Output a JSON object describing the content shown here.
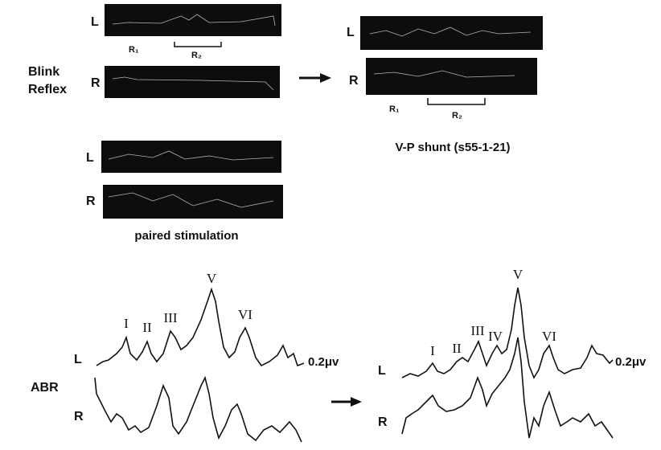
{
  "blink_reflex": {
    "label": [
      "Blink",
      "Reflex"
    ],
    "before": {
      "left": "L",
      "right": "R",
      "r1": "R₁",
      "r2": "R₂"
    },
    "after": {
      "left": "L",
      "right": "R",
      "r1": "R₁",
      "r2": "R₂",
      "caption": "V-P shunt (s55-1-21)"
    },
    "paired": {
      "left": "L",
      "right": "R",
      "caption": "paired stimulation"
    }
  },
  "abr": {
    "label": "ABR",
    "before": {
      "left": "L",
      "right": "R",
      "peaks": [
        "I",
        "II",
        "III",
        "V",
        "VI"
      ],
      "scale": "0.2μv"
    },
    "after": {
      "left": "L",
      "right": "R",
      "peaks": [
        "I",
        "II",
        "III",
        "IV",
        "V",
        "VI"
      ],
      "scale": "0.2μv"
    }
  }
}
